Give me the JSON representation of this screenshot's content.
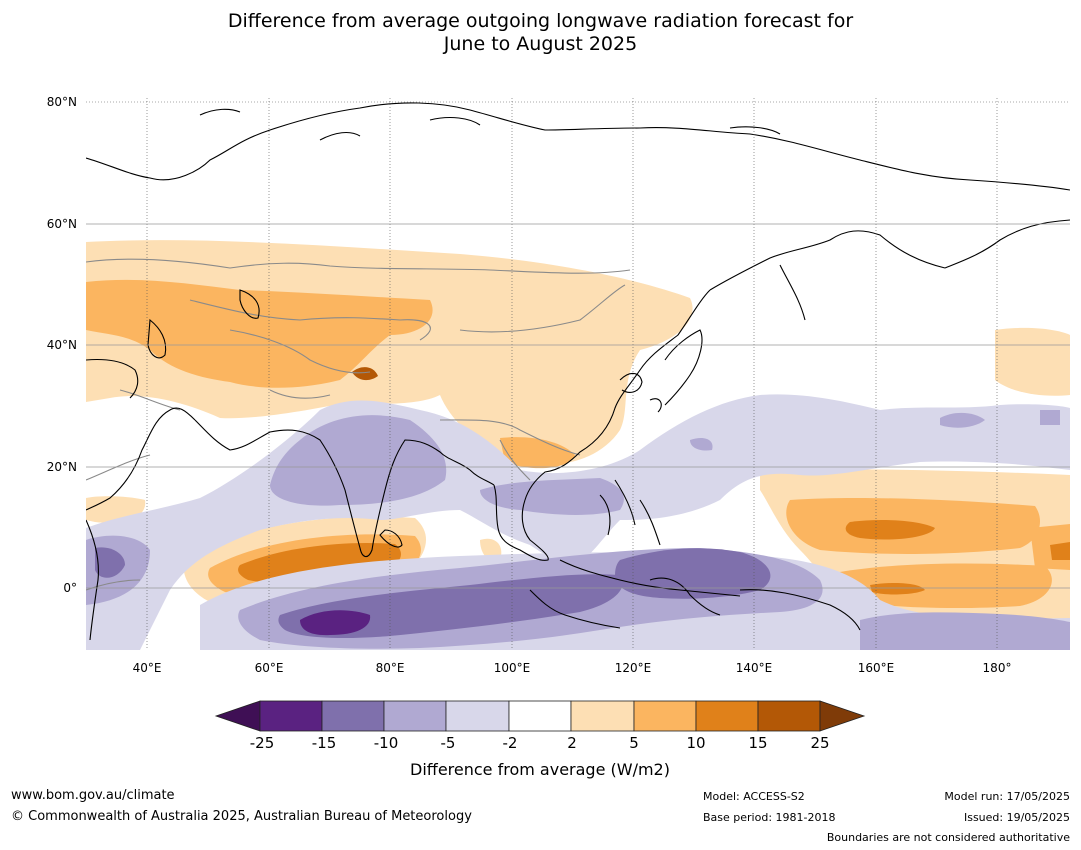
{
  "title": {
    "line1": "Difference from average outgoing longwave radiation forecast for",
    "line2": "June to August 2025"
  },
  "map": {
    "lon_ticks": [
      "40°E",
      "60°E",
      "80°E",
      "100°E",
      "120°E",
      "140°E",
      "160°E",
      "180°"
    ],
    "lat_ticks": [
      "80°N",
      "60°N",
      "40°N",
      "20°N",
      "0°"
    ]
  },
  "colorbar": {
    "label": "Difference from average (W/m2)",
    "ticks": [
      "-25",
      "-15",
      "-10",
      "-5",
      "-2",
      "2",
      "5",
      "10",
      "15",
      "25"
    ],
    "colors": [
      "#3f0f55",
      "#5a2281",
      "#7f70ac",
      "#b0a9d2",
      "#d8d7ea",
      "#ffffff",
      "#fddfb4",
      "#fbb560",
      "#e0811a",
      "#b35806",
      "#7f3b08"
    ]
  },
  "footer": {
    "website": "www.bom.gov.au/climate",
    "copyright": "© Commonwealth of Australia 2025, Australian Bureau of Meteorology",
    "model": "Model: ACCESS-S2",
    "base_period": "Base period: 1981-2018",
    "model_run": "Model run: 17/05/2025",
    "issued": "Issued: 19/05/2025",
    "disclaimer": "Boundaries are not considered authoritative"
  }
}
